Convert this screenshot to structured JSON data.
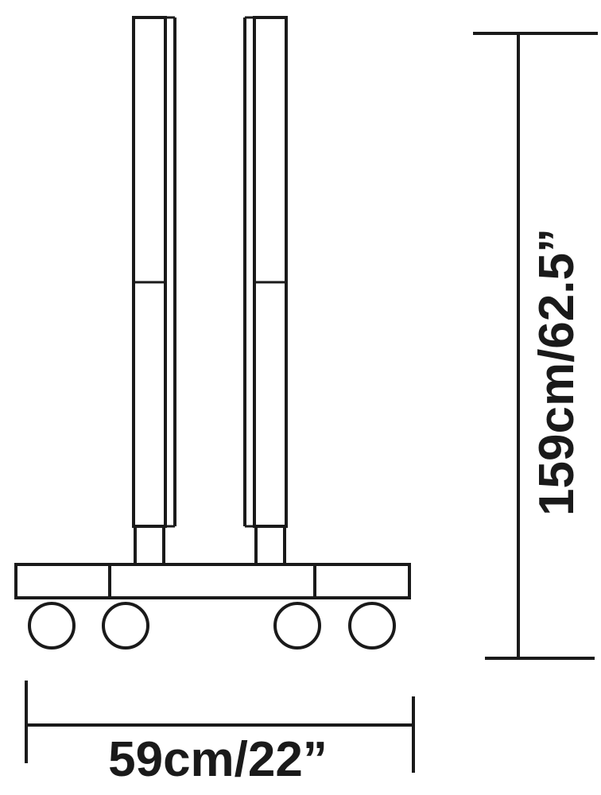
{
  "dimensions": {
    "width_label": "59cm/22”",
    "height_label": "159cm/62.5”"
  },
  "colors": {
    "line": "#1a1a1a",
    "background": "#ffffff"
  }
}
